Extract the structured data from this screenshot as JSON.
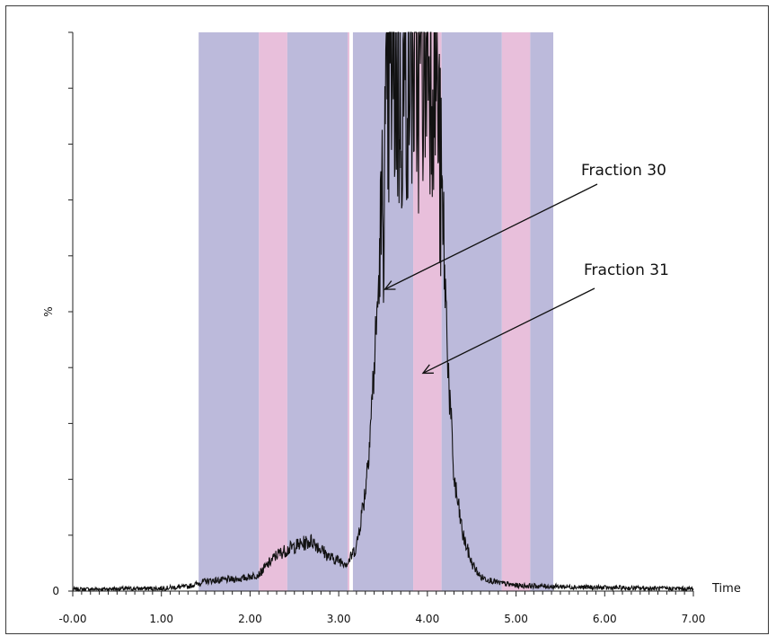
{
  "chart_data": {
    "type": "line",
    "title": "",
    "xlabel": "Time",
    "ylabel": "%",
    "xlim": [
      0,
      7
    ],
    "ylim": [
      0,
      100
    ],
    "x_tick_labels": [
      "-0.00",
      "1.00",
      "2.00",
      "3.00",
      "4.00",
      "5.00",
      "6.00",
      "7.00"
    ],
    "x_tick_values": [
      0,
      1,
      2,
      3,
      4,
      5,
      6,
      7
    ],
    "y_tick_labels": [
      {
        "value": 0,
        "label": "0"
      },
      {
        "value": 50,
        "label": "%"
      }
    ],
    "fraction_bands": [
      {
        "start": 1.42,
        "end": 2.1,
        "color": "#bcbadb"
      },
      {
        "start": 2.1,
        "end": 2.42,
        "color": "#e8bfdb"
      },
      {
        "start": 2.42,
        "end": 3.1,
        "color": "#bcbadb"
      },
      {
        "start": 3.1,
        "end": 3.12,
        "color": "#e8bfdb"
      },
      {
        "start": 3.16,
        "end": 3.84,
        "color": "#bcbadb"
      },
      {
        "start": 3.84,
        "end": 4.16,
        "color": "#e8bfdb"
      },
      {
        "start": 4.16,
        "end": 4.84,
        "color": "#bcbadb"
      },
      {
        "start": 4.84,
        "end": 5.16,
        "color": "#e8bfdb"
      },
      {
        "start": 5.16,
        "end": 5.42,
        "color": "#bcbadb"
      }
    ],
    "series": [
      {
        "x": [
          0.0,
          0.5,
          1.0,
          1.3,
          1.5,
          1.7,
          1.9,
          2.1,
          2.3,
          2.5,
          2.7,
          2.9,
          3.1,
          3.2,
          3.3,
          3.35,
          3.4,
          3.45,
          3.5,
          3.55,
          3.6,
          3.7,
          3.8,
          3.9,
          4.0,
          4.1,
          4.15,
          4.2,
          4.25,
          4.3,
          4.4,
          4.5,
          4.6,
          4.8,
          5.0,
          5.5,
          6.0,
          6.5,
          7.0
        ],
        "y": [
          0.3,
          0.4,
          0.5,
          0.8,
          1.8,
          2.0,
          2.2,
          3.0,
          6.5,
          8.0,
          9.0,
          6.0,
          5.0,
          8.0,
          18.0,
          28.0,
          40.0,
          55.0,
          70.0,
          85.0,
          95.0,
          88.0,
          96.0,
          92.0,
          100.0,
          95.0,
          72.0,
          55.0,
          35.0,
          20.0,
          10.0,
          5.0,
          2.5,
          1.5,
          1.0,
          0.8,
          0.6,
          0.5,
          0.4
        ],
        "color": "#111111"
      }
    ],
    "annotations": [
      {
        "text": "Fraction 30",
        "arrow_to_x": 3.52,
        "arrow_to_y": 54
      },
      {
        "text": "Fraction 31",
        "arrow_to_x": 3.95,
        "arrow_to_y": 39
      }
    ],
    "grid": false
  }
}
